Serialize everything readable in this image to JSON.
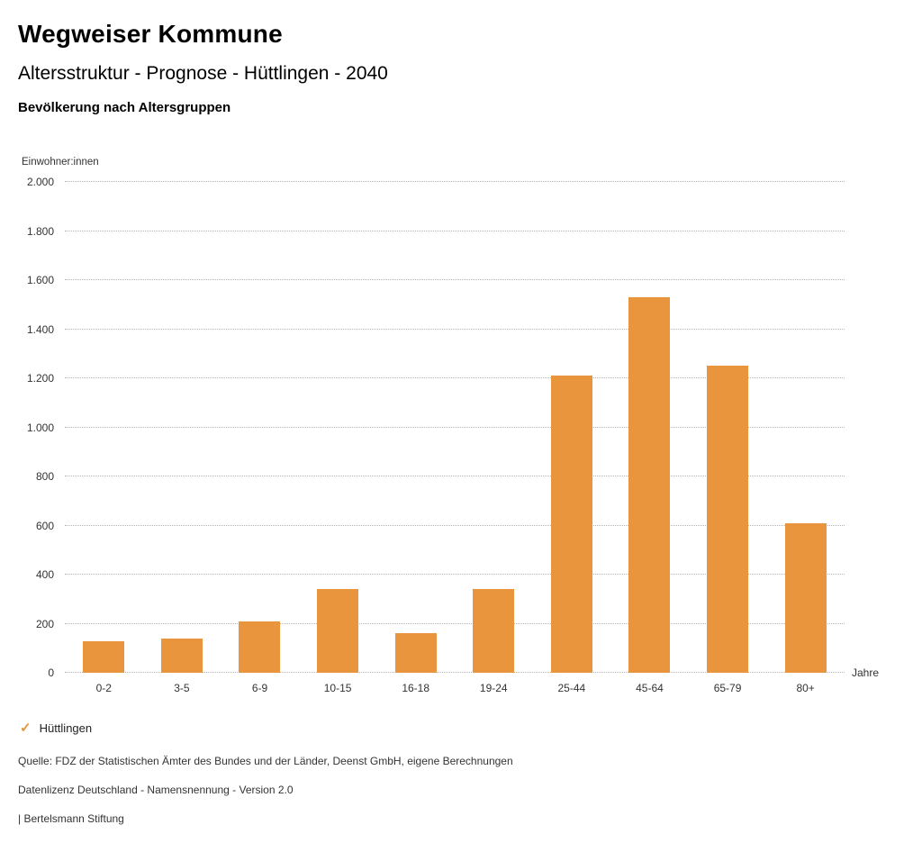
{
  "header": {
    "title": "Wegweiser Kommune",
    "subtitle": "Altersstruktur - Prognose - Hüttlingen - 2040",
    "chart_title": "Bevölkerung nach Altersgruppen"
  },
  "chart_data": {
    "type": "bar",
    "title": "Bevölkerung nach Altersgruppen",
    "categories": [
      "0-2",
      "3-5",
      "6-9",
      "10-15",
      "16-18",
      "19-24",
      "25-44",
      "45-64",
      "65-79",
      "80+"
    ],
    "series": [
      {
        "name": "Hüttlingen",
        "values": [
          130,
          140,
          210,
          340,
          160,
          340,
          1210,
          1530,
          1250,
          610
        ]
      }
    ],
    "xlabel": "Jahre",
    "ylabel": "Einwohner:innen",
    "ylim": [
      0,
      2000
    ],
    "ytick_step": 200,
    "ytick_labels": [
      "0",
      "200",
      "400",
      "600",
      "800",
      "1.000",
      "1.200",
      "1.400",
      "1.600",
      "1.800",
      "2.000"
    ],
    "grid": "horizontal dotted",
    "legend_position": "bottom-left",
    "bar_color": "#E9953D",
    "legend_marker": "✓"
  },
  "footer": {
    "source": "Quelle: FDZ der Statistischen Ämter des Bundes und der Länder, Deenst GmbH, eigene Berechnungen",
    "license": "Datenlizenz Deutschland - Namensnennung - Version 2.0",
    "attribution": "| Bertelsmann Stiftung"
  }
}
